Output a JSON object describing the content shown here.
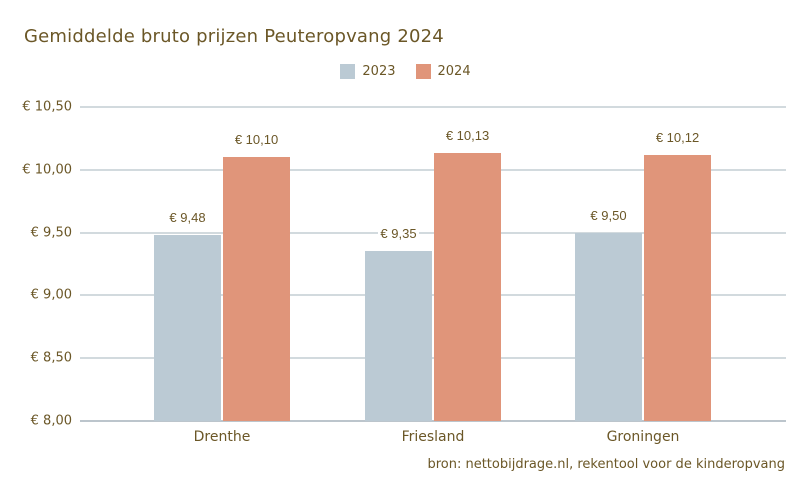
{
  "title": "Gemiddelde bruto prijzen Peuteropvang 2024",
  "source_note": "bron: nettobijdrage.nl, rekentool voor de kinderopvang",
  "colors": {
    "text": "#6b5727",
    "background": "#ffffff",
    "gridline": "#d2dade",
    "axis_line": "#bcc5cc",
    "series_2023": "#bbcad4",
    "series_2024": "#e0957a"
  },
  "legend": {
    "items": [
      {
        "label": "2023",
        "color": "#bbcad4"
      },
      {
        "label": "2024",
        "color": "#e0957a"
      }
    ]
  },
  "chart_data": {
    "type": "bar",
    "title": "Gemiddelde bruto prijzen Peuteropvang 2024",
    "categories": [
      "Drenthe",
      "Friesland",
      "Groningen"
    ],
    "series": [
      {
        "name": "2023",
        "color": "#bbcad4",
        "values": [
          9.48,
          9.35,
          9.5
        ],
        "labels": [
          "€ 9,48",
          "€ 9,35",
          "€ 9,50"
        ]
      },
      {
        "name": "2024",
        "color": "#e0957a",
        "values": [
          10.1,
          10.13,
          10.12
        ],
        "labels": [
          "€ 10,10",
          "€ 10,13",
          "€ 10,12"
        ]
      }
    ],
    "xlabel": "",
    "ylabel": "",
    "ylim": [
      8.0,
      10.5
    ],
    "yticks": [
      8.0,
      8.5,
      9.0,
      9.5,
      10.0,
      10.5
    ],
    "ytick_labels": [
      "€ 8,00",
      "€ 8,50",
      "€ 9,00",
      "€ 9,50",
      "€ 10,00",
      "€ 10,50"
    ],
    "grid": true,
    "legend_position": "top-center",
    "value_labels": true
  }
}
